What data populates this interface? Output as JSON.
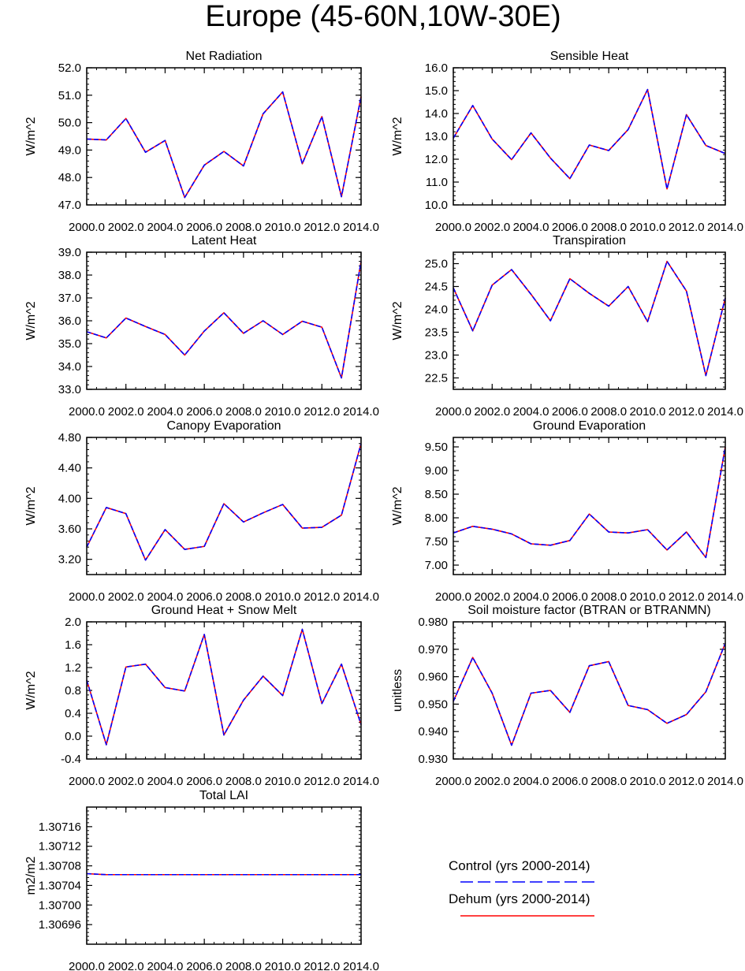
{
  "figure": {
    "title": "Europe (45-60N,10W-30E)",
    "series_colors": {
      "Control (yrs 2000-2014)": "#0000ff",
      "Dehum (yrs 2000-2014)": "#ff0000"
    },
    "legend": [
      {
        "label": "Control (yrs 2000-2014)",
        "color": "#0000ff",
        "style": "dashed"
      },
      {
        "label": "Dehum (yrs 2000-2014)",
        "color": "#ff0000",
        "style": "solid"
      }
    ]
  },
  "chart_data": [
    {
      "type": "line",
      "title": "Net Radiation",
      "xlabel": "",
      "ylabel": "W/m^2",
      "x": [
        2000,
        2001,
        2002,
        2003,
        2004,
        2005,
        2006,
        2007,
        2008,
        2009,
        2010,
        2011,
        2012,
        2013,
        2014
      ],
      "xlim": [
        2000,
        2014
      ],
      "xticks": [
        "2000.0",
        "2002.0",
        "2004.0",
        "2006.0",
        "2008.0",
        "2010.0",
        "2012.0",
        "2014.0"
      ],
      "ylim": [
        47.0,
        52.0
      ],
      "yticks": [
        "47.0",
        "48.0",
        "49.0",
        "50.0",
        "51.0",
        "52.0"
      ],
      "series": [
        {
          "name": "Control (yrs 2000-2014)",
          "values": [
            49.4,
            49.37,
            50.15,
            48.92,
            49.35,
            47.27,
            48.45,
            48.95,
            48.42,
            50.32,
            51.12,
            48.5,
            50.22,
            47.3,
            50.95
          ]
        },
        {
          "name": "Dehum (yrs 2000-2014)",
          "values": [
            49.4,
            49.37,
            50.15,
            48.92,
            49.35,
            47.27,
            48.45,
            48.95,
            48.42,
            50.32,
            51.12,
            48.5,
            50.22,
            47.3,
            50.95
          ]
        }
      ]
    },
    {
      "type": "line",
      "title": "Sensible Heat",
      "xlabel": "",
      "ylabel": "W/m^2",
      "x": [
        2000,
        2001,
        2002,
        2003,
        2004,
        2005,
        2006,
        2007,
        2008,
        2009,
        2010,
        2011,
        2012,
        2013,
        2014
      ],
      "xlim": [
        2000,
        2014
      ],
      "xticks": [
        "2000.0",
        "2002.0",
        "2004.0",
        "2006.0",
        "2008.0",
        "2010.0",
        "2012.0",
        "2014.0"
      ],
      "ylim": [
        10.0,
        16.0
      ],
      "yticks": [
        "10.0",
        "11.0",
        "12.0",
        "13.0",
        "14.0",
        "15.0",
        "16.0"
      ],
      "series": [
        {
          "name": "Control (yrs 2000-2014)",
          "values": [
            12.92,
            14.35,
            12.88,
            11.98,
            13.15,
            12.05,
            11.15,
            12.62,
            12.38,
            13.3,
            15.05,
            10.7,
            13.95,
            12.6,
            12.25
          ]
        },
        {
          "name": "Dehum (yrs 2000-2014)",
          "values": [
            12.92,
            14.35,
            12.88,
            11.98,
            13.15,
            12.05,
            11.15,
            12.62,
            12.38,
            13.3,
            15.05,
            10.7,
            13.95,
            12.6,
            12.25
          ]
        }
      ]
    },
    {
      "type": "line",
      "title": "Latent Heat",
      "xlabel": "",
      "ylabel": "W/m^2",
      "x": [
        2000,
        2001,
        2002,
        2003,
        2004,
        2005,
        2006,
        2007,
        2008,
        2009,
        2010,
        2011,
        2012,
        2013,
        2014
      ],
      "xlim": [
        2000,
        2014
      ],
      "xticks": [
        "2000.0",
        "2002.0",
        "2004.0",
        "2006.0",
        "2008.0",
        "2010.0",
        "2012.0",
        "2014.0"
      ],
      "ylim": [
        33.0,
        39.0
      ],
      "yticks": [
        "33.0",
        "34.0",
        "35.0",
        "36.0",
        "37.0",
        "38.0",
        "39.0"
      ],
      "series": [
        {
          "name": "Control (yrs 2000-2014)",
          "values": [
            35.52,
            35.25,
            36.12,
            35.75,
            35.4,
            34.5,
            35.55,
            36.35,
            35.45,
            36.0,
            35.4,
            35.98,
            35.72,
            33.5,
            38.6
          ]
        },
        {
          "name": "Dehum (yrs 2000-2014)",
          "values": [
            35.52,
            35.25,
            36.12,
            35.75,
            35.4,
            34.5,
            35.55,
            36.35,
            35.45,
            36.0,
            35.4,
            35.98,
            35.72,
            33.5,
            38.6
          ]
        }
      ]
    },
    {
      "type": "line",
      "title": "Transpiration",
      "xlabel": "",
      "ylabel": "W/m^2",
      "x": [
        2000,
        2001,
        2002,
        2003,
        2004,
        2005,
        2006,
        2007,
        2008,
        2009,
        2010,
        2011,
        2012,
        2013,
        2014
      ],
      "xlim": [
        2000,
        2014
      ],
      "xticks": [
        "2000.0",
        "2002.0",
        "2004.0",
        "2006.0",
        "2008.0",
        "2010.0",
        "2012.0",
        "2014.0"
      ],
      "ylim": [
        22.25,
        25.25
      ],
      "yticks": [
        "22.5",
        "23.0",
        "23.5",
        "24.0",
        "24.5",
        "25.0"
      ],
      "series": [
        {
          "name": "Control (yrs 2000-2014)",
          "values": [
            24.47,
            23.53,
            24.53,
            24.87,
            24.33,
            23.75,
            24.67,
            24.35,
            24.07,
            24.5,
            23.73,
            25.05,
            24.4,
            22.55,
            24.25
          ]
        },
        {
          "name": "Dehum (yrs 2000-2014)",
          "values": [
            24.47,
            23.53,
            24.53,
            24.87,
            24.33,
            23.75,
            24.67,
            24.35,
            24.07,
            24.5,
            23.73,
            25.05,
            24.4,
            22.55,
            24.25
          ]
        }
      ]
    },
    {
      "type": "line",
      "title": "Canopy Evaporation",
      "xlabel": "",
      "ylabel": "W/m^2",
      "x": [
        2000,
        2001,
        2002,
        2003,
        2004,
        2005,
        2006,
        2007,
        2008,
        2009,
        2010,
        2011,
        2012,
        2013,
        2014
      ],
      "xlim": [
        2000,
        2014
      ],
      "xticks": [
        "2000.0",
        "2002.0",
        "2004.0",
        "2006.0",
        "2008.0",
        "2010.0",
        "2012.0",
        "2014.0"
      ],
      "ylim": [
        3.0,
        4.8
      ],
      "yticks": [
        "3.20",
        "3.60",
        "4.00",
        "4.40",
        "4.80"
      ],
      "series": [
        {
          "name": "Control (yrs 2000-2014)",
          "values": [
            3.36,
            3.88,
            3.8,
            3.19,
            3.59,
            3.33,
            3.37,
            3.93,
            3.69,
            3.81,
            3.92,
            3.61,
            3.62,
            3.78,
            4.72
          ]
        },
        {
          "name": "Dehum (yrs 2000-2014)",
          "values": [
            3.36,
            3.88,
            3.8,
            3.19,
            3.59,
            3.33,
            3.37,
            3.93,
            3.69,
            3.81,
            3.92,
            3.61,
            3.62,
            3.78,
            4.72
          ]
        }
      ]
    },
    {
      "type": "line",
      "title": "Ground Evaporation",
      "xlabel": "",
      "ylabel": "W/m^2",
      "x": [
        2000,
        2001,
        2002,
        2003,
        2004,
        2005,
        2006,
        2007,
        2008,
        2009,
        2010,
        2011,
        2012,
        2013,
        2014
      ],
      "xlim": [
        2000,
        2014
      ],
      "xticks": [
        "2000.0",
        "2002.0",
        "2004.0",
        "2006.0",
        "2008.0",
        "2010.0",
        "2012.0",
        "2014.0"
      ],
      "ylim": [
        6.8,
        9.7
      ],
      "yticks": [
        "7.00",
        "7.50",
        "8.00",
        "8.50",
        "9.00",
        "9.50"
      ],
      "series": [
        {
          "name": "Control (yrs 2000-2014)",
          "values": [
            7.68,
            7.82,
            7.76,
            7.66,
            7.45,
            7.42,
            7.52,
            8.08,
            7.7,
            7.68,
            7.75,
            7.32,
            7.7,
            7.16,
            9.5
          ]
        },
        {
          "name": "Dehum (yrs 2000-2014)",
          "values": [
            7.68,
            7.82,
            7.76,
            7.66,
            7.45,
            7.42,
            7.52,
            8.08,
            7.7,
            7.68,
            7.75,
            7.32,
            7.7,
            7.16,
            9.5
          ]
        }
      ]
    },
    {
      "type": "line",
      "title": "Ground Heat + Snow Melt",
      "xlabel": "",
      "ylabel": "W/m^2",
      "x": [
        2000,
        2001,
        2002,
        2003,
        2004,
        2005,
        2006,
        2007,
        2008,
        2009,
        2010,
        2011,
        2012,
        2013,
        2014
      ],
      "xlim": [
        2000,
        2014
      ],
      "xticks": [
        "2000.0",
        "2002.0",
        "2004.0",
        "2006.0",
        "2008.0",
        "2010.0",
        "2012.0",
        "2014.0"
      ],
      "ylim": [
        -0.4,
        2.0
      ],
      "yticks": [
        "-0.4",
        "0.0",
        "0.4",
        "0.8",
        "1.2",
        "1.6",
        "2.0"
      ],
      "series": [
        {
          "name": "Control (yrs 2000-2014)",
          "values": [
            0.98,
            -0.15,
            1.21,
            1.26,
            0.85,
            0.79,
            1.78,
            0.02,
            0.63,
            1.05,
            0.71,
            1.87,
            0.57,
            1.26,
            0.2
          ]
        },
        {
          "name": "Dehum (yrs 2000-2014)",
          "values": [
            0.98,
            -0.15,
            1.21,
            1.26,
            0.85,
            0.79,
            1.78,
            0.02,
            0.63,
            1.05,
            0.71,
            1.87,
            0.57,
            1.26,
            0.2
          ]
        }
      ]
    },
    {
      "type": "line",
      "title": "Soil moisture factor (BTRAN or BTRANMN)",
      "xlabel": "",
      "ylabel": "unitless",
      "x": [
        2000,
        2001,
        2002,
        2003,
        2004,
        2005,
        2006,
        2007,
        2008,
        2009,
        2010,
        2011,
        2012,
        2013,
        2014
      ],
      "xlim": [
        2000,
        2014
      ],
      "xticks": [
        "2000.0",
        "2002.0",
        "2004.0",
        "2006.0",
        "2008.0",
        "2010.0",
        "2012.0",
        "2014.0"
      ],
      "ylim": [
        0.93,
        0.98
      ],
      "yticks": [
        "0.930",
        "0.940",
        "0.950",
        "0.960",
        "0.970",
        "0.980"
      ],
      "series": [
        {
          "name": "Control (yrs 2000-2014)",
          "values": [
            0.951,
            0.967,
            0.954,
            0.935,
            0.954,
            0.955,
            0.947,
            0.964,
            0.9655,
            0.9495,
            0.948,
            0.943,
            0.9462,
            0.9545,
            0.9722
          ]
        },
        {
          "name": "Dehum (yrs 2000-2014)",
          "values": [
            0.951,
            0.967,
            0.954,
            0.935,
            0.954,
            0.955,
            0.947,
            0.964,
            0.9655,
            0.9495,
            0.948,
            0.943,
            0.9462,
            0.9545,
            0.9722
          ]
        }
      ]
    },
    {
      "type": "line",
      "title": "Total LAI",
      "xlabel": "",
      "ylabel": "m2/m2",
      "x": [
        2000,
        2001,
        2002,
        2003,
        2004,
        2005,
        2006,
        2007,
        2008,
        2009,
        2010,
        2011,
        2012,
        2013,
        2014
      ],
      "xlim": [
        2000,
        2014
      ],
      "xticks": [
        "2000.0",
        "2002.0",
        "2004.0",
        "2006.0",
        "2008.0",
        "2010.0",
        "2012.0",
        "2014.0"
      ],
      "ylim": [
        1.30692,
        1.3072
      ],
      "yticks": [
        "1.30696",
        "1.30700",
        "1.30704",
        "1.30708",
        "1.30712",
        "1.30716"
      ],
      "series": [
        {
          "name": "Control (yrs 2000-2014)",
          "values": [
            1.307064,
            1.307062,
            1.307062,
            1.307062,
            1.307062,
            1.307062,
            1.307062,
            1.307062,
            1.307062,
            1.307062,
            1.307062,
            1.307062,
            1.307062,
            1.307062,
            1.307062
          ]
        },
        {
          "name": "Dehum (yrs 2000-2014)",
          "values": [
            1.307064,
            1.307062,
            1.307062,
            1.307062,
            1.307062,
            1.307062,
            1.307062,
            1.307062,
            1.307062,
            1.307062,
            1.307062,
            1.307062,
            1.307062,
            1.307062,
            1.307062
          ]
        }
      ]
    }
  ]
}
